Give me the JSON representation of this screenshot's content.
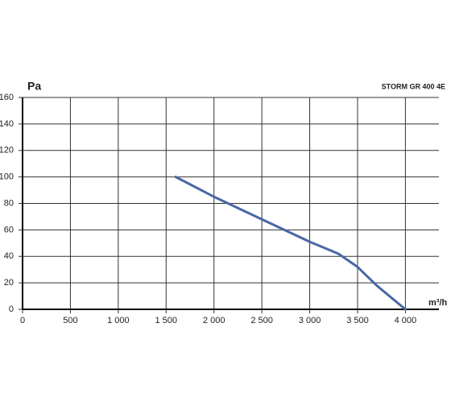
{
  "chart_data": {
    "type": "line",
    "title": "STORM GR 400 4E",
    "y_label": "Pa",
    "x_label": "m³/h",
    "x": [
      1600,
      2000,
      2500,
      3000,
      3300,
      3500,
      3700,
      4000
    ],
    "series": [
      {
        "name": "STORM GR 400 4E",
        "color": "#4a67a6",
        "values": [
          100,
          85,
          68,
          51,
          42,
          32,
          18,
          0
        ]
      }
    ],
    "xlim": [
      0,
      4350
    ],
    "ylim": [
      0,
      160
    ],
    "xticks": [
      0,
      500,
      {
        "value": 1000,
        "label": "1 000"
      },
      {
        "value": 1500,
        "label": "1 500"
      },
      {
        "value": 2000,
        "label": "2 000"
      },
      {
        "value": 2500,
        "label": "2 500"
      },
      {
        "value": 3000,
        "label": "3 000"
      },
      {
        "value": 3500,
        "label": "3 500"
      },
      {
        "value": 4000,
        "label": "4 000"
      }
    ],
    "yticks": [
      0,
      20,
      40,
      60,
      80,
      100,
      120,
      140,
      160
    ],
    "grid": true
  }
}
